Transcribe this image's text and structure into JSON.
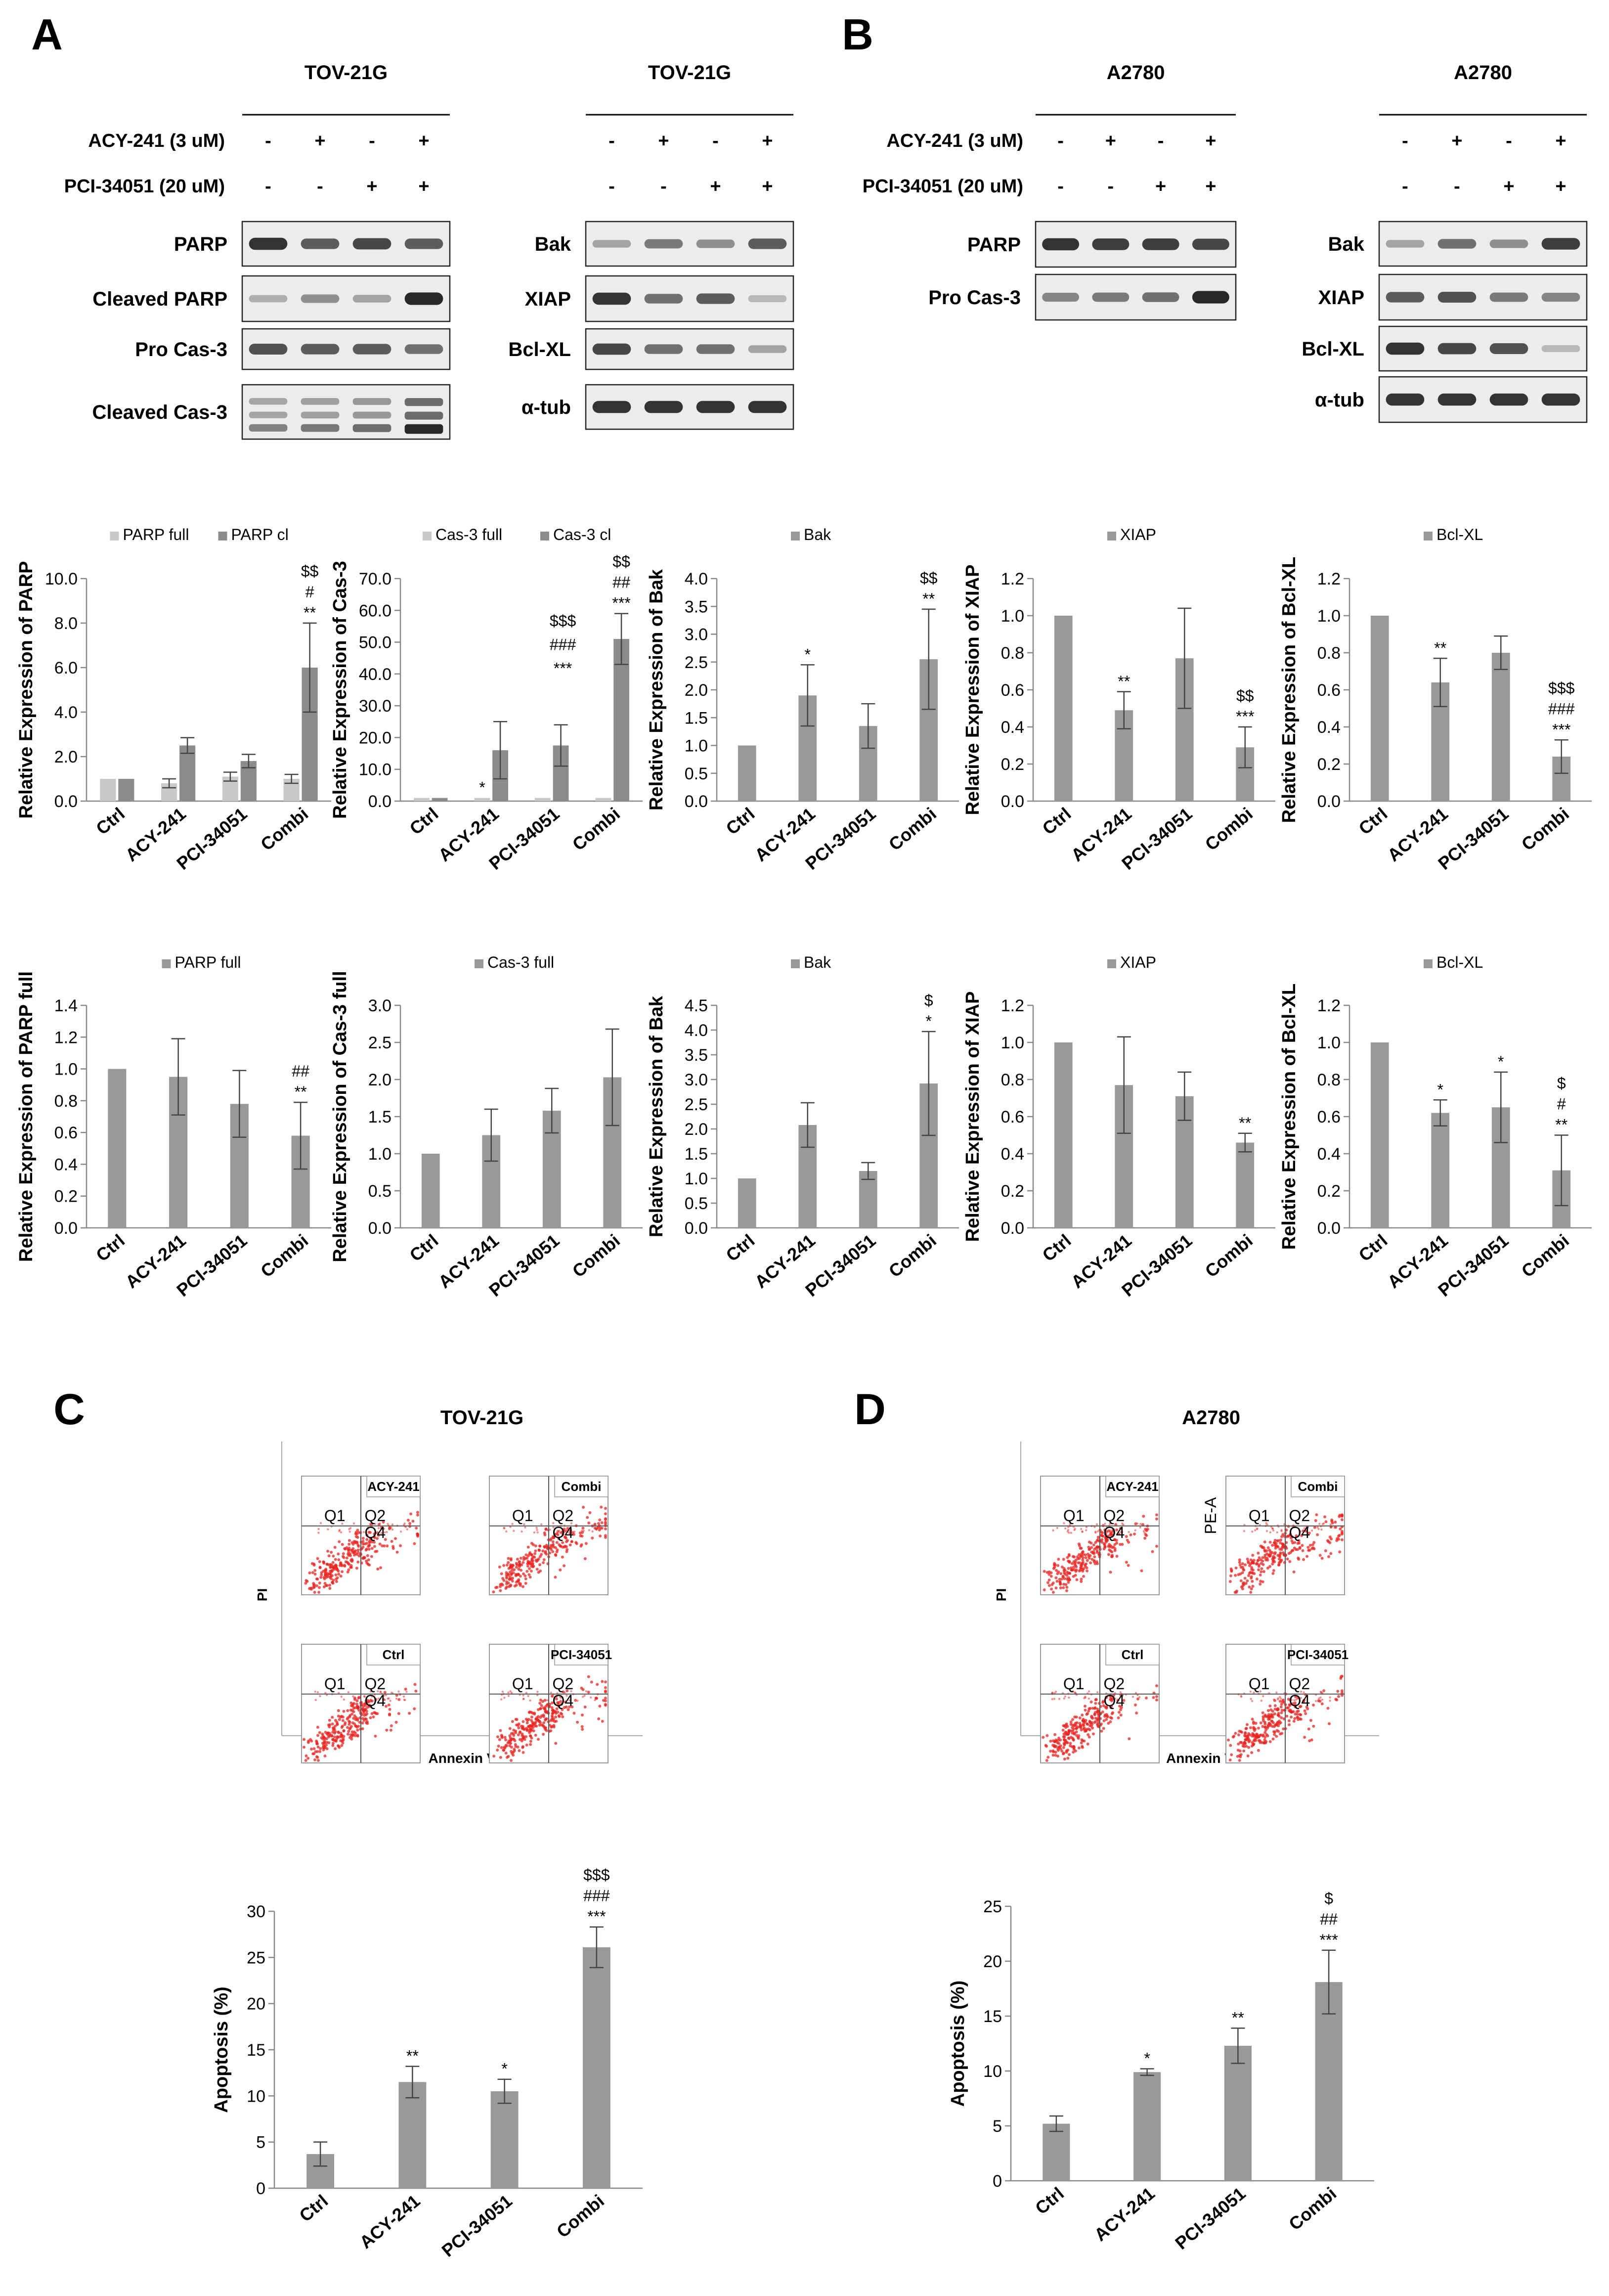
{
  "panels": {
    "A": "A",
    "B": "B",
    "C": "C",
    "D": "D"
  },
  "blots": {
    "treatments": [
      "ACY-241 (3 uM)",
      "PCI-34051 (20 uM)"
    ],
    "signs": [
      [
        "-",
        "+",
        "-",
        "+"
      ],
      [
        "-",
        "-",
        "+",
        "+"
      ]
    ],
    "A_left": {
      "title": "TOV-21G",
      "bands": [
        "PARP",
        "Cleaved PARP",
        "Pro Cas-3",
        "Cleaved Cas-3"
      ]
    },
    "A_right": {
      "title": "TOV-21G",
      "bands": [
        "Bak",
        "XIAP",
        "Bcl-XL",
        "α-tub"
      ]
    },
    "B_left": {
      "title": "A2780",
      "bands": [
        "PARP",
        "Pro Cas-3"
      ]
    },
    "B_right": {
      "title": "A2780",
      "bands": [
        "Bak",
        "XIAP",
        "Bcl-XL",
        "α-tub"
      ]
    }
  },
  "flow": {
    "C": {
      "title": "TOV-21G",
      "xlabel": "Annexin V",
      "ylabel": "PI",
      "plots": [
        "ACY-241",
        "Combi",
        "Ctrl",
        "PCI-34051"
      ],
      "extra_axis": ""
    },
    "D": {
      "title": "A2780",
      "xlabel": "Annexin V",
      "ylabel": "PI",
      "plots": [
        "ACY-241",
        "Combi",
        "Ctrl",
        "PCI-34051"
      ],
      "extra_axis": "PE-A"
    },
    "quadrants": [
      "Q1",
      "Q2",
      "Q4"
    ]
  },
  "colors": {
    "light": "#c8c8c8",
    "dark": "#8c8c8c",
    "bar": "#999999",
    "flow": "#e8231f"
  },
  "chart_data": [
    {
      "id": "A_r1_parp",
      "type": "bar",
      "categories": [
        "Ctrl",
        "ACY-241",
        "PCI-34051",
        "Combi"
      ],
      "ylabel": "Relative Expression of PARP",
      "ylim": [
        0,
        10
      ],
      "ytick": 2,
      "decimals": 1,
      "series": [
        {
          "name": "PARP full",
          "color": "light",
          "values": [
            1.0,
            0.8,
            1.1,
            1.0
          ],
          "errors": [
            0.0,
            0.2,
            0.2,
            0.2
          ]
        },
        {
          "name": "PARP cl",
          "color": "dark",
          "values": [
            1.0,
            2.5,
            1.8,
            6.0
          ],
          "errors": [
            0.0,
            0.35,
            0.3,
            2.0
          ]
        }
      ],
      "sig": [
        [
          "",
          ""
        ],
        [
          "",
          ""
        ],
        [
          "",
          ""
        ],
        [
          "",
          "$$\n#\n**"
        ]
      ]
    },
    {
      "id": "A_r1_cas3",
      "type": "bar",
      "categories": [
        "Ctrl",
        "ACY-241",
        "PCI-34051",
        "Combi"
      ],
      "ylabel": "Relative Expression of Cas-3",
      "ylim": [
        0,
        70
      ],
      "ytick": 10,
      "decimals": 1,
      "series": [
        {
          "name": "Cas-3 full",
          "color": "light",
          "values": [
            1.0,
            1.0,
            1.0,
            1.0
          ],
          "errors": [
            0,
            0,
            0,
            0
          ]
        },
        {
          "name": "Cas-3 cl",
          "color": "dark",
          "values": [
            1.0,
            16.0,
            17.5,
            51.0
          ],
          "errors": [
            0.0,
            9.0,
            6.5,
            8.0
          ]
        }
      ],
      "sig": [
        [
          "",
          ""
        ],
        [
          "*",
          ""
        ],
        [
          "",
          "$$$\n###\n***"
        ],
        [
          "",
          "$$\n##\n***"
        ]
      ]
    },
    {
      "id": "A_r1_bak",
      "type": "bar",
      "categories": [
        "Ctrl",
        "ACY-241",
        "PCI-34051",
        "Combi"
      ],
      "ylabel": "Relative Expression of Bak",
      "ylim": [
        0,
        4
      ],
      "ytick": 0.5,
      "decimals": 1,
      "series": [
        {
          "name": "Bak",
          "color": "bar",
          "values": [
            1.0,
            1.9,
            1.35,
            2.55
          ],
          "errors": [
            0.0,
            0.55,
            0.4,
            0.9
          ]
        }
      ],
      "sig": [
        [
          ""
        ],
        [
          "*"
        ],
        [
          ""
        ],
        [
          "$$\n**"
        ]
      ]
    },
    {
      "id": "A_r1_xiap",
      "type": "bar",
      "categories": [
        "Ctrl",
        "ACY-241",
        "PCI-34051",
        "Combi"
      ],
      "ylabel": "Relative Expression of XIAP",
      "ylim": [
        0,
        1.2
      ],
      "ytick": 0.2,
      "decimals": 1,
      "series": [
        {
          "name": "XIAP",
          "color": "bar",
          "values": [
            1.0,
            0.49,
            0.77,
            0.29
          ],
          "errors": [
            0.0,
            0.1,
            0.27,
            0.11
          ]
        }
      ],
      "sig": [
        [
          ""
        ],
        [
          "**"
        ],
        [
          ""
        ],
        [
          "$$\n***"
        ]
      ]
    },
    {
      "id": "A_r1_bclxl",
      "type": "bar",
      "categories": [
        "Ctrl",
        "ACY-241",
        "PCI-34051",
        "Combi"
      ],
      "ylabel": "Relative Expression of Bcl-XL",
      "ylim": [
        0,
        1.2
      ],
      "ytick": 0.2,
      "decimals": 1,
      "series": [
        {
          "name": "Bcl-XL",
          "color": "bar",
          "values": [
            1.0,
            0.64,
            0.8,
            0.24
          ],
          "errors": [
            0.0,
            0.13,
            0.09,
            0.09
          ]
        }
      ],
      "sig": [
        [
          ""
        ],
        [
          "**"
        ],
        [
          ""
        ],
        [
          "$$$\n###\n***"
        ]
      ]
    },
    {
      "id": "B_r2_parp",
      "type": "bar",
      "categories": [
        "Ctrl",
        "ACY-241",
        "PCI-34051",
        "Combi"
      ],
      "ylabel": "Relative Expression of PARP full",
      "ylim": [
        0,
        1.4
      ],
      "ytick": 0.2,
      "decimals": 1,
      "series": [
        {
          "name": "PARP full",
          "color": "bar",
          "values": [
            1.0,
            0.95,
            0.78,
            0.58
          ],
          "errors": [
            0.0,
            0.24,
            0.21,
            0.21
          ]
        }
      ],
      "sig": [
        [
          ""
        ],
        [
          ""
        ],
        [
          ""
        ],
        [
          "##\n**"
        ]
      ]
    },
    {
      "id": "B_r2_cas3",
      "type": "bar",
      "categories": [
        "Ctrl",
        "ACY-241",
        "PCI-34051",
        "Combi"
      ],
      "ylabel": "Relative Expression of Cas-3 full",
      "ylim": [
        0,
        3
      ],
      "ytick": 0.5,
      "decimals": 1,
      "series": [
        {
          "name": "Cas-3 full",
          "color": "bar",
          "values": [
            1.0,
            1.25,
            1.58,
            2.03
          ],
          "errors": [
            0.0,
            0.35,
            0.3,
            0.65
          ]
        }
      ],
      "sig": [
        [
          ""
        ],
        [
          ""
        ],
        [
          ""
        ],
        [
          ""
        ]
      ]
    },
    {
      "id": "B_r2_bak",
      "type": "bar",
      "categories": [
        "Ctrl",
        "ACY-241",
        "PCI-34051",
        "Combi"
      ],
      "ylabel": "Relative Expression of Bak",
      "ylim": [
        0,
        4.5
      ],
      "ytick": 0.5,
      "decimals": 1,
      "series": [
        {
          "name": "Bak",
          "color": "bar",
          "values": [
            1.0,
            2.08,
            1.15,
            2.92
          ],
          "errors": [
            0.0,
            0.45,
            0.17,
            1.05
          ]
        }
      ],
      "sig": [
        [
          ""
        ],
        [
          ""
        ],
        [
          ""
        ],
        [
          "$\n*"
        ]
      ]
    },
    {
      "id": "B_r2_xiap",
      "type": "bar",
      "categories": [
        "Ctrl",
        "ACY-241",
        "PCI-34051",
        "Combi"
      ],
      "ylabel": "Relative Expression of XIAP",
      "ylim": [
        0,
        1.2
      ],
      "ytick": 0.2,
      "decimals": 1,
      "series": [
        {
          "name": "XIAP",
          "color": "bar",
          "values": [
            1.0,
            0.77,
            0.71,
            0.46
          ],
          "errors": [
            0.0,
            0.26,
            0.13,
            0.05
          ]
        }
      ],
      "sig": [
        [
          ""
        ],
        [
          ""
        ],
        [
          ""
        ],
        [
          "**"
        ]
      ]
    },
    {
      "id": "B_r2_bclxl",
      "type": "bar",
      "categories": [
        "Ctrl",
        "ACY-241",
        "PCI-34051",
        "Combi"
      ],
      "ylabel": "Relative Expression of Bcl-XL",
      "ylim": [
        0,
        1.2
      ],
      "ytick": 0.2,
      "decimals": 1,
      "series": [
        {
          "name": "Bcl-XL",
          "color": "bar",
          "values": [
            1.0,
            0.62,
            0.65,
            0.31
          ],
          "errors": [
            0.0,
            0.07,
            0.19,
            0.19
          ]
        }
      ],
      "sig": [
        [
          ""
        ],
        [
          "*"
        ],
        [
          "*"
        ],
        [
          "$\n#\n**"
        ]
      ]
    },
    {
      "id": "C_apop",
      "type": "bar",
      "categories": [
        "Ctrl",
        "ACY-241",
        "PCI-34051",
        "Combi"
      ],
      "ylabel": "Apoptosis (%)",
      "ylim": [
        0,
        30
      ],
      "ytick": 5,
      "decimals": 0,
      "series": [
        {
          "name": "",
          "color": "bar",
          "values": [
            3.7,
            11.5,
            10.5,
            26.1
          ],
          "errors": [
            1.3,
            1.7,
            1.3,
            2.2
          ]
        }
      ],
      "sig": [
        [
          ""
        ],
        [
          "**"
        ],
        [
          "*"
        ],
        [
          "$$$\n###\n***"
        ]
      ]
    },
    {
      "id": "D_apop",
      "type": "bar",
      "categories": [
        "Ctrl",
        "ACY-241",
        "PCI-34051",
        "Combi"
      ],
      "ylabel": "Apoptosis (%)",
      "ylim": [
        0,
        25
      ],
      "ytick": 5,
      "decimals": 0,
      "series": [
        {
          "name": "",
          "color": "bar",
          "values": [
            5.2,
            9.9,
            12.3,
            18.1
          ],
          "errors": [
            0.7,
            0.3,
            1.6,
            2.9
          ]
        }
      ],
      "sig": [
        [
          ""
        ],
        [
          "*"
        ],
        [
          "**"
        ],
        [
          "$\n##\n***"
        ]
      ]
    }
  ]
}
